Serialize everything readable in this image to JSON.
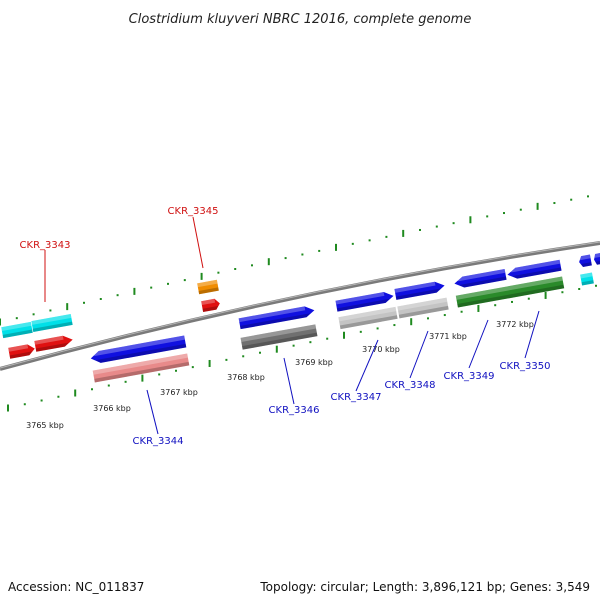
{
  "title": "Clostridium kluyveri NBRC 12016, complete genome",
  "accession": "Accession: NC_011837",
  "summary": "Topology: circular; Length: 3,896,121 bp; Genes: 3,549",
  "kbp_labels": [
    "3765 kbp",
    "3766 kbp",
    "3767 kbp",
    "3768 kbp",
    "3769 kbp",
    "3770 kbp",
    "3771 kbp",
    "3772 kbp"
  ],
  "gene_labels": {
    "ckr_3343": "CKR_3343",
    "ckr_3344": "CKR_3344",
    "ckr_3345": "CKR_3345",
    "ckr_3346": "CKR_3346",
    "ckr_3347": "CKR_3347",
    "ckr_3348": "CKR_3348",
    "ckr_3349": "CKR_3349",
    "ckr_3350": "CKR_3350"
  },
  "colors": {
    "backbone": "#808080",
    "tick": "#1f8a1f",
    "cds_forward": "#1010e0",
    "cyan": "#00e0e8",
    "red": "#e01010",
    "orange": "#f08c00",
    "pink": "#e88a8a",
    "dark_gray": "#707070",
    "light_gray": "#c4c4c4",
    "green": "#2a8a2a",
    "label_red": "#d01010",
    "label_blue": "#1010c0"
  }
}
